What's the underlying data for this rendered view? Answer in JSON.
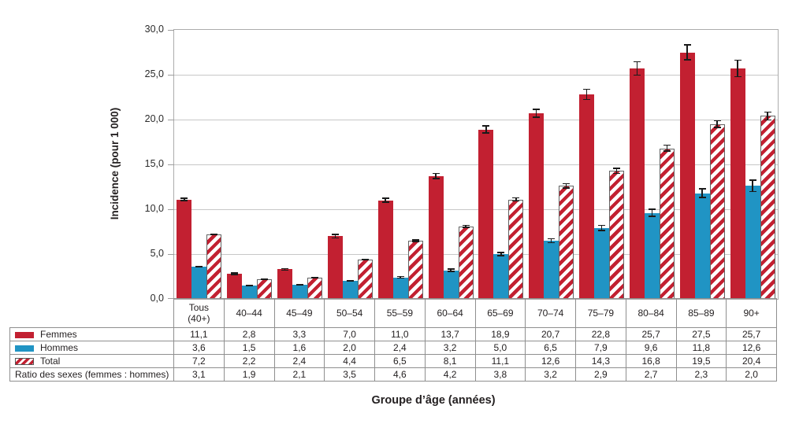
{
  "chart_data": {
    "type": "bar",
    "title": "",
    "xlabel": "Groupe d’âge (années)",
    "ylabel": "Incidence (pour 1 000)",
    "ylim": [
      0,
      30
    ],
    "grid": "horizontal",
    "legend_position": "table-below",
    "error_bars": true,
    "yticks": [
      "0,0",
      "5,0",
      "10,0",
      "15,0",
      "20,0",
      "25,0",
      "30,0"
    ],
    "ytick_values": [
      0,
      5,
      10,
      15,
      20,
      25,
      30
    ],
    "categories": [
      "Tous\n(40+)",
      "40–44",
      "45–49",
      "50–54",
      "55–59",
      "60–64",
      "65–69",
      "70–74",
      "75–79",
      "80–84",
      "85–89",
      "90+"
    ],
    "series": [
      {
        "name": "Femmes",
        "style": "solid-red",
        "color": "#c22031",
        "values": [
          11.1,
          2.8,
          3.3,
          7.0,
          11.0,
          13.7,
          18.9,
          20.7,
          22.8,
          25.7,
          27.5,
          25.7
        ],
        "errors": [
          0.2,
          0.15,
          0.15,
          0.25,
          0.3,
          0.35,
          0.45,
          0.5,
          0.65,
          0.8,
          0.9,
          1.0
        ]
      },
      {
        "name": "Hommes",
        "style": "solid-blue",
        "color": "#2094c4",
        "values": [
          3.6,
          1.5,
          1.6,
          2.0,
          2.4,
          3.2,
          5.0,
          6.5,
          7.9,
          9.6,
          11.8,
          12.6
        ],
        "errors": [
          0.1,
          0.1,
          0.1,
          0.12,
          0.15,
          0.2,
          0.25,
          0.3,
          0.35,
          0.45,
          0.55,
          0.7
        ]
      },
      {
        "name": "Total",
        "style": "hatched-red",
        "color": "#c22031",
        "values": [
          7.2,
          2.2,
          2.4,
          4.4,
          6.5,
          8.1,
          11.1,
          12.6,
          14.3,
          16.8,
          19.5,
          20.4
        ],
        "errors": [
          0.12,
          0.1,
          0.1,
          0.12,
          0.15,
          0.18,
          0.25,
          0.3,
          0.35,
          0.4,
          0.45,
          0.5
        ]
      }
    ]
  },
  "table": {
    "rows": [
      {
        "label": "Femmes",
        "swatch": "solid-red",
        "values": [
          "11,1",
          "2,8",
          "3,3",
          "7,0",
          "11,0",
          "13,7",
          "18,9",
          "20,7",
          "22,8",
          "25,7",
          "27,5",
          "25,7"
        ]
      },
      {
        "label": "Hommes",
        "swatch": "solid-blue",
        "values": [
          "3,6",
          "1,5",
          "1,6",
          "2,0",
          "2,4",
          "3,2",
          "5,0",
          "6,5",
          "7,9",
          "9,6",
          "11,8",
          "12,6"
        ]
      },
      {
        "label": "Total",
        "swatch": "hatched-red",
        "values": [
          "7,2",
          "2,2",
          "2,4",
          "4,4",
          "6,5",
          "8,1",
          "11,1",
          "12,6",
          "14,3",
          "16,8",
          "19,5",
          "20,4"
        ]
      },
      {
        "label": "Ratio des sexes (femmes : hommes)",
        "swatch": "none",
        "values": [
          "3,1",
          "1,9",
          "2,1",
          "3,5",
          "4,6",
          "4,2",
          "3,8",
          "3,2",
          "2,9",
          "2,7",
          "2,3",
          "2,0"
        ]
      }
    ]
  },
  "colors": {
    "femmes": "#c22031",
    "hommes": "#2094c4",
    "hatch_stripe": "#c22031",
    "gridline": "#c7c7c7",
    "plot_border": "#acacac",
    "table_border": "#8f8f8f",
    "error_bar": "#1a1a1a",
    "text": "#231f20"
  }
}
